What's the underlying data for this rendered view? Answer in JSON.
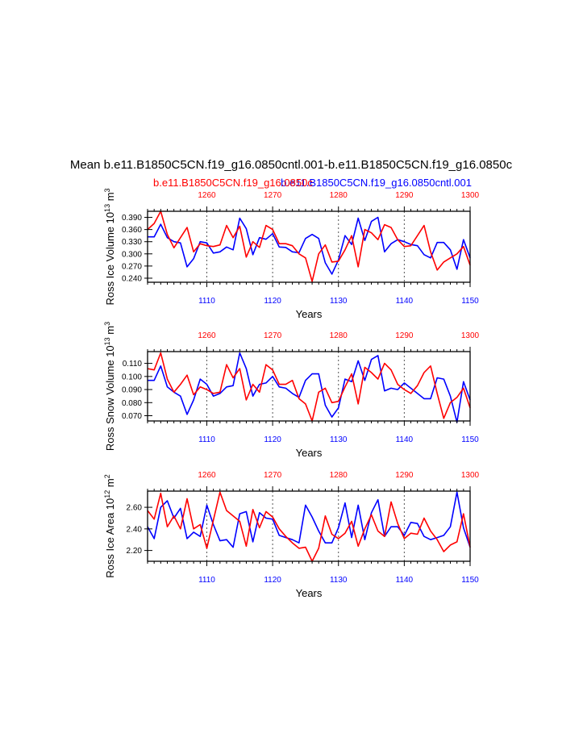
{
  "title": "Mean b.e11.B1850C5CN.f19_g16.0850cntl.001-b.e11.B1850C5CN.f19_g16.0850c",
  "legend": [
    {
      "label": "b.e11.B1850C5CN.f19_g16.0850cntl.001",
      "color": "#0000ff"
    },
    {
      "label": "b.e11.B1850C5CN.f19_g16.0850c",
      "color": "#ff0000"
    }
  ],
  "chart_data": [
    {
      "type": "line",
      "ylabel_main": "Ross Ice Volume 10",
      "ylabel_exp": "13",
      "ylabel_unit": " m",
      "ylabel_unit_exp": "3",
      "xlabel": "Years",
      "ylim": [
        0.23,
        0.405
      ],
      "yticks": [
        0.24,
        0.27,
        0.3,
        0.33,
        0.36,
        0.39
      ],
      "yticklabels": [
        "0.240",
        "0.270",
        "0.300",
        "0.330",
        "0.360",
        "0.390"
      ],
      "xlim_bottom": [
        1101,
        1150
      ],
      "xticks_bottom": [
        1110,
        1120,
        1130,
        1140,
        1150
      ],
      "xlim_top": [
        1251,
        1300
      ],
      "xticks_top": [
        1260,
        1270,
        1280,
        1290,
        1300
      ],
      "bottom_color": "#0000ff",
      "top_color": "#ff0000",
      "series": [
        {
          "name": "b.e11.B1850C5CN.f19_g16.0850cntl.001",
          "color": "#0000ff",
          "axis": "bottom",
          "x": [
            1101,
            1102,
            1103,
            1104,
            1105,
            1106,
            1107,
            1108,
            1109,
            1110,
            1111,
            1112,
            1113,
            1114,
            1115,
            1116,
            1117,
            1118,
            1119,
            1120,
            1121,
            1122,
            1123,
            1124,
            1125,
            1126,
            1127,
            1128,
            1129,
            1130,
            1131,
            1132,
            1133,
            1134,
            1135,
            1136,
            1137,
            1138,
            1139,
            1140,
            1141,
            1142,
            1143,
            1144,
            1145,
            1146,
            1147,
            1148,
            1149,
            1150
          ],
          "values": [
            0.342,
            0.342,
            0.373,
            0.34,
            0.33,
            0.327,
            0.268,
            0.288,
            0.33,
            0.327,
            0.302,
            0.305,
            0.317,
            0.31,
            0.388,
            0.362,
            0.298,
            0.34,
            0.336,
            0.35,
            0.317,
            0.316,
            0.305,
            0.303,
            0.338,
            0.348,
            0.338,
            0.278,
            0.25,
            0.285,
            0.345,
            0.323,
            0.388,
            0.333,
            0.38,
            0.39,
            0.305,
            0.325,
            0.335,
            0.33,
            0.323,
            0.32,
            0.298,
            0.29,
            0.328,
            0.328,
            0.31,
            0.262,
            0.335,
            0.29
          ]
        },
        {
          "name": "b.e11.B1850C5CN.f19_g16.0850c",
          "color": "#ff0000",
          "axis": "top",
          "x": [
            1251,
            1252,
            1253,
            1254,
            1255,
            1256,
            1257,
            1258,
            1259,
            1260,
            1261,
            1262,
            1263,
            1264,
            1265,
            1266,
            1267,
            1268,
            1269,
            1270,
            1271,
            1272,
            1273,
            1274,
            1275,
            1276,
            1277,
            1278,
            1279,
            1280,
            1281,
            1282,
            1283,
            1284,
            1285,
            1286,
            1287,
            1288,
            1289,
            1290,
            1291,
            1292,
            1293,
            1294,
            1295,
            1296,
            1297,
            1298,
            1299,
            1300
          ],
          "values": [
            0.36,
            0.375,
            0.405,
            0.348,
            0.315,
            0.34,
            0.365,
            0.305,
            0.325,
            0.32,
            0.318,
            0.322,
            0.37,
            0.34,
            0.368,
            0.292,
            0.33,
            0.316,
            0.37,
            0.36,
            0.325,
            0.325,
            0.32,
            0.3,
            0.29,
            0.232,
            0.3,
            0.322,
            0.28,
            0.282,
            0.31,
            0.345,
            0.268,
            0.36,
            0.352,
            0.335,
            0.372,
            0.365,
            0.335,
            0.318,
            0.32,
            0.345,
            0.37,
            0.305,
            0.26,
            0.28,
            0.29,
            0.3,
            0.318,
            0.272
          ]
        }
      ]
    },
    {
      "type": "line",
      "ylabel_main": "Ross Snow Volume 10",
      "ylabel_exp": "13",
      "ylabel_unit": " m",
      "ylabel_unit_exp": "3",
      "xlabel": "Years",
      "ylim": [
        0.066,
        0.119
      ],
      "yticks": [
        0.07,
        0.08,
        0.09,
        0.1,
        0.11
      ],
      "yticklabels": [
        "0.070",
        "0.080",
        "0.090",
        "0.100",
        "0.110"
      ],
      "xlim_bottom": [
        1101,
        1150
      ],
      "xticks_bottom": [
        1110,
        1120,
        1130,
        1140,
        1150
      ],
      "xlim_top": [
        1251,
        1300
      ],
      "xticks_top": [
        1260,
        1270,
        1280,
        1290,
        1300
      ],
      "bottom_color": "#0000ff",
      "top_color": "#ff0000",
      "series": [
        {
          "name": "b.e11.B1850C5CN.f19_g16.0850cntl.001",
          "color": "#0000ff",
          "axis": "bottom",
          "x": [
            1101,
            1102,
            1103,
            1104,
            1105,
            1106,
            1107,
            1108,
            1109,
            1110,
            1111,
            1112,
            1113,
            1114,
            1115,
            1116,
            1117,
            1118,
            1119,
            1120,
            1121,
            1122,
            1123,
            1124,
            1125,
            1126,
            1127,
            1128,
            1129,
            1130,
            1131,
            1132,
            1133,
            1134,
            1135,
            1136,
            1137,
            1138,
            1139,
            1140,
            1141,
            1142,
            1143,
            1144,
            1145,
            1146,
            1147,
            1148,
            1149,
            1150
          ],
          "values": [
            0.097,
            0.097,
            0.108,
            0.092,
            0.088,
            0.085,
            0.071,
            0.082,
            0.098,
            0.094,
            0.085,
            0.087,
            0.092,
            0.093,
            0.118,
            0.106,
            0.085,
            0.094,
            0.095,
            0.1,
            0.092,
            0.091,
            0.087,
            0.084,
            0.097,
            0.102,
            0.102,
            0.078,
            0.069,
            0.076,
            0.098,
            0.096,
            0.112,
            0.097,
            0.113,
            0.116,
            0.089,
            0.091,
            0.09,
            0.095,
            0.091,
            0.087,
            0.083,
            0.083,
            0.099,
            0.098,
            0.085,
            0.065,
            0.096,
            0.082
          ]
        },
        {
          "name": "b.e11.B1850C5CN.f19_g16.0850c",
          "color": "#ff0000",
          "axis": "top",
          "x": [
            1251,
            1252,
            1253,
            1254,
            1255,
            1256,
            1257,
            1258,
            1259,
            1260,
            1261,
            1262,
            1263,
            1264,
            1265,
            1266,
            1267,
            1268,
            1269,
            1270,
            1271,
            1272,
            1273,
            1274,
            1275,
            1276,
            1277,
            1278,
            1279,
            1280,
            1281,
            1282,
            1283,
            1284,
            1285,
            1286,
            1287,
            1288,
            1289,
            1290,
            1291,
            1292,
            1293,
            1294,
            1295,
            1296,
            1297,
            1298,
            1299,
            1300
          ],
          "values": [
            0.106,
            0.105,
            0.118,
            0.098,
            0.088,
            0.094,
            0.101,
            0.086,
            0.092,
            0.09,
            0.087,
            0.088,
            0.109,
            0.099,
            0.106,
            0.082,
            0.094,
            0.088,
            0.109,
            0.105,
            0.094,
            0.094,
            0.097,
            0.083,
            0.079,
            0.066,
            0.088,
            0.091,
            0.08,
            0.081,
            0.092,
            0.102,
            0.079,
            0.107,
            0.103,
            0.098,
            0.11,
            0.105,
            0.094,
            0.09,
            0.087,
            0.093,
            0.103,
            0.108,
            0.087,
            0.068,
            0.08,
            0.084,
            0.091,
            0.076
          ]
        }
      ]
    },
    {
      "type": "line",
      "ylabel_main": "Ross Ice Area 10",
      "ylabel_exp": "12",
      "ylabel_unit": " m",
      "ylabel_unit_exp": "2",
      "xlabel": "Years",
      "ylim": [
        2.1,
        2.75
      ],
      "yticks": [
        2.2,
        2.4,
        2.6
      ],
      "yticklabels": [
        "2.20",
        "2.40",
        "2.60"
      ],
      "xlim_bottom": [
        1101,
        1150
      ],
      "xticks_bottom": [
        1110,
        1120,
        1130,
        1140,
        1150
      ],
      "xlim_top": [
        1251,
        1300
      ],
      "xticks_top": [
        1260,
        1270,
        1280,
        1290,
        1300
      ],
      "bottom_color": "#0000ff",
      "top_color": "#ff0000",
      "series": [
        {
          "name": "b.e11.B1850C5CN.f19_g16.0850cntl.001",
          "color": "#0000ff",
          "axis": "bottom",
          "x": [
            1101,
            1102,
            1103,
            1104,
            1105,
            1106,
            1107,
            1108,
            1109,
            1110,
            1111,
            1112,
            1113,
            1114,
            1115,
            1116,
            1117,
            1118,
            1119,
            1120,
            1121,
            1122,
            1123,
            1124,
            1125,
            1126,
            1127,
            1128,
            1129,
            1130,
            1131,
            1132,
            1133,
            1134,
            1135,
            1136,
            1137,
            1138,
            1139,
            1140,
            1141,
            1142,
            1143,
            1144,
            1145,
            1146,
            1147,
            1148,
            1149,
            1150
          ],
          "values": [
            2.42,
            2.31,
            2.6,
            2.66,
            2.5,
            2.59,
            2.31,
            2.37,
            2.33,
            2.62,
            2.44,
            2.29,
            2.3,
            2.23,
            2.54,
            2.56,
            2.28,
            2.55,
            2.5,
            2.49,
            2.34,
            2.32,
            2.3,
            2.27,
            2.62,
            2.51,
            2.38,
            2.27,
            2.27,
            2.41,
            2.64,
            2.32,
            2.62,
            2.3,
            2.55,
            2.67,
            2.33,
            2.42,
            2.42,
            2.34,
            2.46,
            2.45,
            2.33,
            2.3,
            2.32,
            2.34,
            2.42,
            2.74,
            2.41,
            2.23
          ]
        },
        {
          "name": "b.e11.B1850C5CN.f19_g16.0850c",
          "color": "#ff0000",
          "axis": "top",
          "x": [
            1251,
            1252,
            1253,
            1254,
            1255,
            1256,
            1257,
            1258,
            1259,
            1260,
            1261,
            1262,
            1263,
            1264,
            1265,
            1266,
            1267,
            1268,
            1269,
            1270,
            1271,
            1272,
            1273,
            1274,
            1275,
            1276,
            1277,
            1278,
            1279,
            1280,
            1281,
            1282,
            1283,
            1284,
            1285,
            1286,
            1287,
            1288,
            1289,
            1290,
            1291,
            1292,
            1293,
            1294,
            1295,
            1296,
            1297,
            1298,
            1299,
            1300
          ],
          "values": [
            2.57,
            2.49,
            2.73,
            2.42,
            2.52,
            2.4,
            2.68,
            2.4,
            2.44,
            2.22,
            2.48,
            2.74,
            2.57,
            2.52,
            2.47,
            2.24,
            2.58,
            2.41,
            2.56,
            2.51,
            2.4,
            2.33,
            2.27,
            2.22,
            2.23,
            2.1,
            2.22,
            2.52,
            2.35,
            2.31,
            2.36,
            2.47,
            2.24,
            2.4,
            2.53,
            2.38,
            2.33,
            2.65,
            2.45,
            2.31,
            2.36,
            2.35,
            2.5,
            2.38,
            2.3,
            2.19,
            2.25,
            2.28,
            2.54,
            2.23
          ]
        }
      ]
    }
  ]
}
